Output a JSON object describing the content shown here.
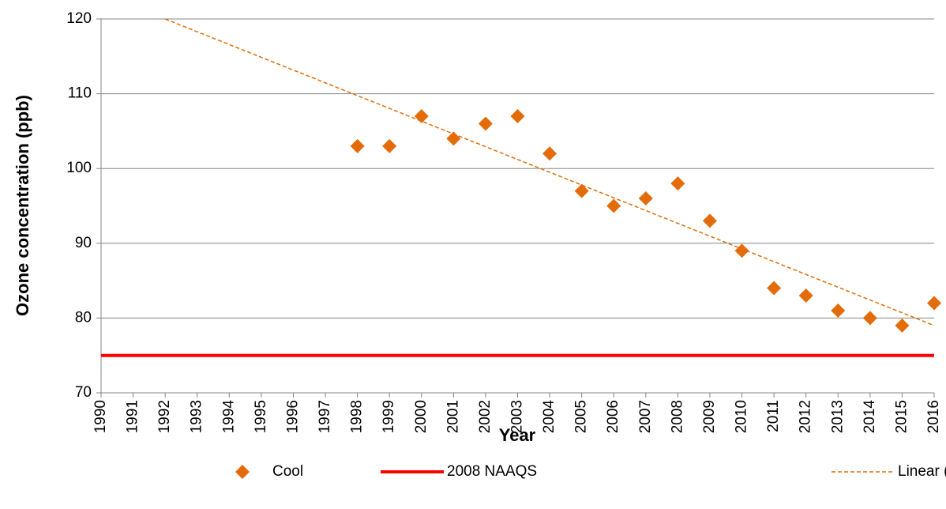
{
  "chart_data": {
    "type": "scatter",
    "xlabel": "Year",
    "ylabel": "Ozone concentration (ppb)",
    "xlim": [
      1990,
      2016
    ],
    "xticks": [
      1990,
      1991,
      1992,
      1993,
      1994,
      1995,
      1996,
      1997,
      1998,
      1999,
      2000,
      2001,
      2002,
      2003,
      2004,
      2005,
      2006,
      2007,
      2008,
      2009,
      2010,
      2011,
      2012,
      2013,
      2014,
      2015,
      2016
    ],
    "ylim": [
      70,
      120
    ],
    "yticks": [
      70,
      80,
      90,
      100,
      110,
      120
    ],
    "grid": true,
    "legend": "bottom",
    "series": [
      {
        "name": "Cool",
        "type": "scatter",
        "color": "#e36c09",
        "x": [
          1998,
          1999,
          2000,
          2001,
          2002,
          2003,
          2004,
          2005,
          2006,
          2007,
          2008,
          2009,
          2010,
          2011,
          2012,
          2013,
          2014,
          2015,
          2016
        ],
        "values": [
          103,
          103,
          107,
          104,
          106,
          107,
          102,
          97,
          95,
          96,
          98,
          93,
          89,
          84,
          83,
          81,
          80,
          79,
          82
        ]
      },
      {
        "name": "2008 NAAQS",
        "type": "line",
        "color": "#ff0000",
        "x": [
          1990,
          2016
        ],
        "values": [
          75,
          75
        ]
      },
      {
        "name": "Linear (Cool)",
        "type": "line",
        "dashed": true,
        "color": "#e36c09",
        "x": [
          1992,
          2016
        ],
        "values": [
          120,
          79
        ]
      }
    ]
  }
}
